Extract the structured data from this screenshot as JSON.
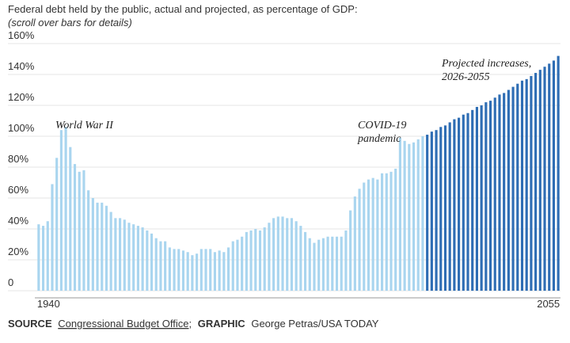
{
  "chart_data": {
    "type": "bar",
    "title": "Federal debt held by the public, actual and projected, as percentage of GDP:",
    "subtitle": "(scroll over bars for details)",
    "categories": [
      "1940",
      null,
      null,
      null,
      null,
      null,
      null,
      null,
      null,
      null,
      null,
      null,
      null,
      null,
      null,
      null,
      null,
      null,
      null,
      null,
      null,
      null,
      null,
      null,
      null,
      null,
      null,
      null,
      null,
      null,
      null,
      null,
      null,
      null,
      null,
      null,
      null,
      null,
      null,
      null,
      null,
      null,
      null,
      null,
      null,
      null,
      null,
      null,
      null,
      null,
      null,
      null,
      null,
      null,
      null,
      null,
      null,
      null,
      null,
      null,
      null,
      null,
      null,
      null,
      null,
      null,
      null,
      null,
      null,
      null,
      null,
      null,
      null,
      null,
      null,
      null,
      null,
      null,
      null,
      null,
      null,
      null,
      null,
      null,
      null,
      null,
      null,
      null,
      null,
      null,
      null,
      null,
      null,
      null,
      null,
      null,
      null,
      null,
      null,
      null,
      null,
      null,
      null,
      null,
      null,
      null,
      null,
      null,
      null,
      null,
      null,
      null,
      null,
      null,
      null,
      "2055"
    ],
    "series": [
      {
        "color": "#a9d5ef",
        "values": [
          43,
          42,
          45,
          69,
          86,
          104,
          106,
          93,
          82,
          77,
          78,
          65,
          60,
          57,
          57,
          55,
          51,
          47,
          47,
          46,
          44,
          43,
          42,
          41,
          39,
          37,
          34,
          32,
          32,
          28,
          27,
          27,
          26,
          25,
          23,
          24,
          27,
          27,
          27,
          25,
          26,
          25,
          28,
          32,
          33,
          35,
          38,
          39,
          40,
          39,
          41,
          44,
          47,
          48,
          48,
          47,
          47,
          45,
          42,
          38,
          34,
          31,
          33,
          34,
          35,
          35,
          35,
          35,
          39,
          52,
          61,
          66,
          70,
          72,
          73,
          72,
          76,
          76,
          77,
          79,
          99,
          97,
          95,
          96,
          98,
          100,
          null,
          null,
          null,
          null,
          null,
          null,
          null,
          null,
          null,
          null,
          null,
          null,
          null,
          null,
          null,
          null,
          null,
          null,
          null,
          null,
          null,
          null,
          null,
          null,
          null,
          null,
          null,
          null,
          null,
          null
        ]
      },
      {
        "color": "#2e6db4",
        "values": [
          null,
          null,
          null,
          null,
          null,
          null,
          null,
          null,
          null,
          null,
          null,
          null,
          null,
          null,
          null,
          null,
          null,
          null,
          null,
          null,
          null,
          null,
          null,
          null,
          null,
          null,
          null,
          null,
          null,
          null,
          null,
          null,
          null,
          null,
          null,
          null,
          null,
          null,
          null,
          null,
          null,
          null,
          null,
          null,
          null,
          null,
          null,
          null,
          null,
          null,
          null,
          null,
          null,
          null,
          null,
          null,
          null,
          null,
          null,
          null,
          null,
          null,
          null,
          null,
          null,
          null,
          null,
          null,
          null,
          null,
          null,
          null,
          null,
          null,
          null,
          null,
          null,
          null,
          null,
          null,
          null,
          null,
          null,
          null,
          null,
          null,
          101,
          103,
          104,
          106,
          107,
          109,
          111,
          112,
          114,
          115,
          117,
          119,
          120,
          122,
          123,
          125,
          127,
          128,
          130,
          132,
          134,
          136,
          137,
          139,
          141,
          143,
          145,
          147,
          149,
          152
        ]
      }
    ],
    "ylim": [
      0,
      160
    ],
    "yticks": [
      0,
      {
        "value": 20,
        "label": "20%"
      },
      {
        "value": 40,
        "label": "40%"
      },
      {
        "value": 60,
        "label": "60%"
      },
      {
        "value": 80,
        "label": "80%"
      },
      {
        "value": 100,
        "label": "100%"
      },
      {
        "value": 120,
        "label": "120%"
      },
      {
        "value": 140,
        "label": "140%"
      },
      {
        "value": 160,
        "label": "160%"
      }
    ],
    "grid": true,
    "annotations": [
      [
        "World War II"
      ],
      [
        "COVID-19",
        "pandemic"
      ],
      [
        "Projected increases,",
        "2026-2055"
      ]
    ],
    "source": {
      "label": "SOURCE",
      "text": "Congressional Budget Office",
      "sep": ";",
      "graphic_label": "GRAPHIC",
      "graphic": "George Petras/USA TODAY"
    }
  }
}
